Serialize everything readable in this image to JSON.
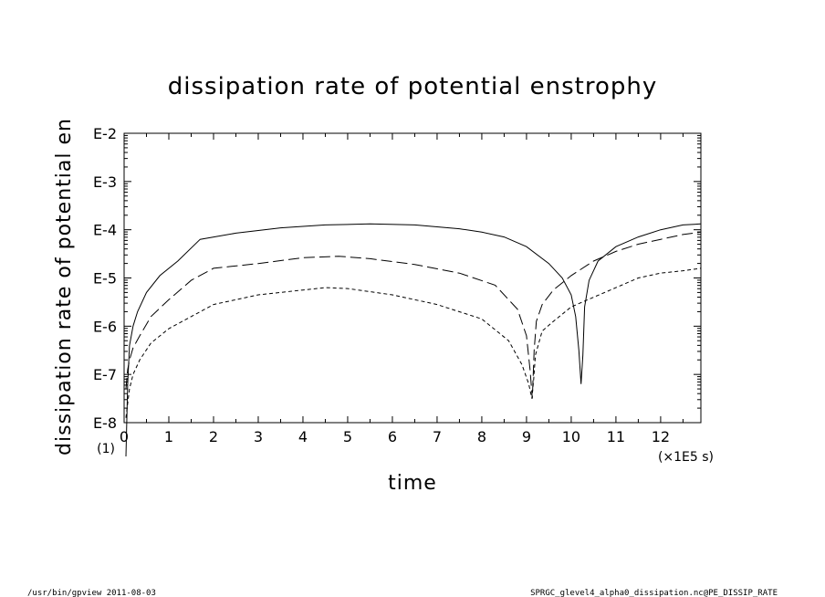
{
  "chart_data": {
    "type": "line",
    "title": "dissipation rate of potential enstrophy",
    "xlabel": "time",
    "ylabel": "dissipation rate of potential en",
    "x_unit": "(×1E5 s)",
    "x_offset_label": "(1)",
    "xlim": [
      0,
      12.9
    ],
    "ylim": [
      -8,
      -2
    ],
    "y_scale": "log",
    "x_ticks": [
      0,
      1,
      2,
      3,
      4,
      5,
      6,
      7,
      8,
      9,
      10,
      11,
      12
    ],
    "x_tick_labels": [
      "0",
      "1",
      "2",
      "3",
      "4",
      "5",
      "6",
      "7",
      "8",
      "9",
      "10",
      "11",
      "12"
    ],
    "y_ticks": [
      -2,
      -3,
      -4,
      -5,
      -6,
      -7,
      -8
    ],
    "y_tick_labels": [
      "E-2",
      "E-3",
      "E-4",
      "E-5",
      "E-6",
      "E-7",
      "E-8"
    ],
    "grid": false,
    "series": [
      {
        "style": "solid",
        "x": [
          0.04,
          0.08,
          0.12,
          0.2,
          0.3,
          0.5,
          0.8,
          1.2,
          1.7,
          2.5,
          3.5,
          4.5,
          5.5,
          6.5,
          7.5,
          8.0,
          8.5,
          9.0,
          9.5,
          9.8,
          10.0,
          10.1,
          10.17,
          10.22,
          10.26,
          10.3,
          10.4,
          10.6,
          11.0,
          11.5,
          12.0,
          12.5,
          12.9
        ],
        "y": [
          -8.7,
          -7.2,
          -6.4,
          -6.0,
          -5.7,
          -5.3,
          -4.95,
          -4.65,
          -4.2,
          -4.07,
          -3.96,
          -3.9,
          -3.88,
          -3.9,
          -3.98,
          -4.05,
          -4.15,
          -4.35,
          -4.7,
          -5.0,
          -5.35,
          -5.8,
          -6.5,
          -7.2,
          -6.6,
          -5.6,
          -5.05,
          -4.65,
          -4.35,
          -4.15,
          -4.0,
          -3.9,
          -3.88
        ],
        "raw_y_label_note": ""
      },
      {
        "style": "dashed",
        "x": [
          0.04,
          0.08,
          0.12,
          0.2,
          0.35,
          0.6,
          1.0,
          1.5,
          2.0,
          3.0,
          4.0,
          4.8,
          5.5,
          6.5,
          7.5,
          8.3,
          8.8,
          9.0,
          9.08,
          9.13,
          9.17,
          9.22,
          9.35,
          9.6,
          10.0,
          10.5,
          11.0,
          11.5,
          12.0,
          12.5,
          12.9
        ],
        "y": [
          -7.3,
          -6.9,
          -6.7,
          -6.45,
          -6.2,
          -5.8,
          -5.45,
          -5.05,
          -4.8,
          -4.7,
          -4.58,
          -4.55,
          -4.6,
          -4.72,
          -4.9,
          -5.15,
          -5.65,
          -6.2,
          -6.9,
          -7.5,
          -6.5,
          -5.9,
          -5.55,
          -5.25,
          -4.95,
          -4.65,
          -4.45,
          -4.3,
          -4.2,
          -4.1,
          -4.05
        ],
        "raw_y_label_note": ""
      },
      {
        "style": "dotted",
        "x": [
          0.04,
          0.08,
          0.12,
          0.2,
          0.35,
          0.6,
          1.0,
          1.5,
          2.0,
          3.0,
          4.0,
          4.5,
          5.0,
          6.0,
          7.0,
          8.0,
          8.6,
          8.9,
          9.05,
          9.12,
          9.16,
          9.2,
          9.35,
          9.6,
          10.0,
          10.5,
          11.0,
          11.5,
          12.0,
          12.5,
          12.9
        ],
        "y": [
          -7.9,
          -7.6,
          -7.3,
          -7.0,
          -6.7,
          -6.35,
          -6.05,
          -5.8,
          -5.55,
          -5.35,
          -5.25,
          -5.2,
          -5.22,
          -5.35,
          -5.55,
          -5.85,
          -6.3,
          -6.8,
          -7.2,
          -7.5,
          -7.1,
          -6.6,
          -6.1,
          -5.9,
          -5.6,
          -5.4,
          -5.2,
          -5.0,
          -4.9,
          -4.85,
          -4.8
        ],
        "raw_y_label_note": ""
      }
    ]
  },
  "footer": {
    "left": "/usr/bin/gpview   2011-08-03",
    "right": "SPRGC_glevel4_alpha0_dissipation.nc@PE_DISSIP_RATE"
  }
}
